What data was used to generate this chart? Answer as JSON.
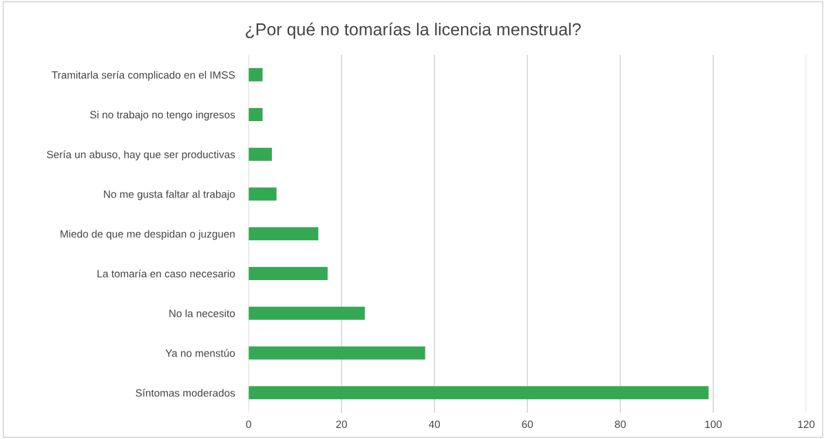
{
  "chart_data": {
    "type": "bar",
    "orientation": "horizontal",
    "title": "¿Por qué no tomarías la licencia menstrual?",
    "categories": [
      "Tramitarla sería complicado en el IMSS",
      "Si no trabajo no tengo ingresos",
      "Sería un abuso, hay que ser productivas",
      "No me gusta faltar al trabajo",
      "Miedo de que me despidan o juzguen",
      "La tomaría en caso necesario",
      "No la necesito",
      "Ya no menstúo",
      "Síntomas moderados"
    ],
    "values": [
      3,
      3,
      5,
      6,
      15,
      17,
      25,
      38,
      99
    ],
    "color": "#34a853",
    "xlim": [
      0,
      120
    ],
    "xticks": [
      0,
      20,
      40,
      60,
      80,
      100,
      120
    ],
    "grid": "x",
    "legend": false
  }
}
